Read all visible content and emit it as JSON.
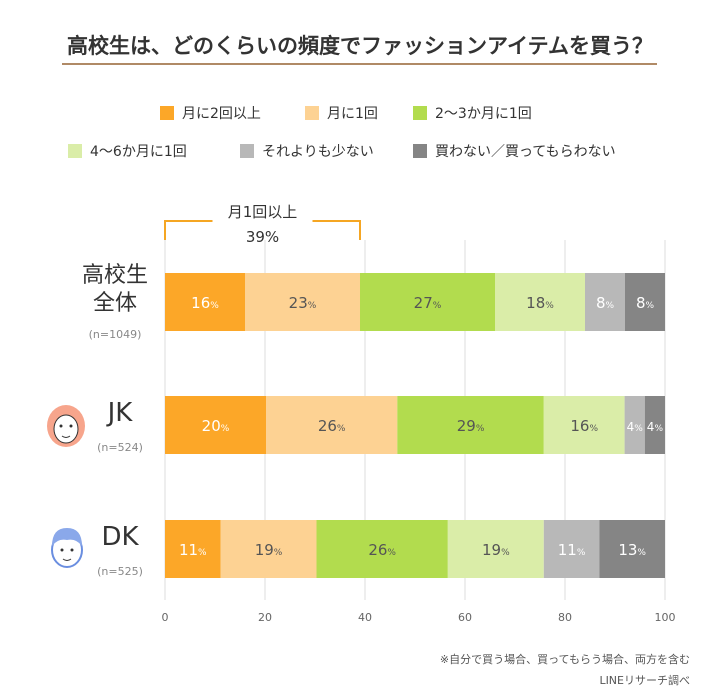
{
  "chart_data": {
    "type": "bar",
    "orientation": "horizontal-stacked",
    "title": "高校生は、どのくらいの頻度でファッションアイテムを買う？",
    "categories": [
      "高校生全体",
      "JK",
      "DK"
    ],
    "category_notes": [
      "(n=1049)",
      "(n=524)",
      "(n=525)"
    ],
    "series": [
      {
        "name": "月に2回以上",
        "color": "#fca728",
        "values": [
          16,
          20,
          11
        ]
      },
      {
        "name": "月に1回",
        "color": "#fdd293",
        "values": [
          23,
          26,
          19
        ]
      },
      {
        "name": "2〜3か月に1回",
        "color": "#b2dc4e",
        "values": [
          27,
          29,
          26
        ]
      },
      {
        "name": "4〜6か月に1回",
        "color": "#daeda8",
        "values": [
          18,
          16,
          19
        ]
      },
      {
        "name": "それよりも少ない",
        "color": "#b8b8b8",
        "values": [
          8,
          4,
          11
        ]
      },
      {
        "name": "買わない／買ってもらわない",
        "color": "#858585",
        "values": [
          8,
          4,
          13
        ]
      }
    ],
    "value_suffix": "%",
    "xlim": [
      0,
      100
    ],
    "xticks": [
      0,
      20,
      40,
      60,
      80,
      100
    ],
    "grid": true,
    "legend_position": "top",
    "annotation": {
      "label": "月1回以上",
      "value": "39%"
    }
  },
  "footnotes": [
    "※自分で買う場合、買ってもらう場合、両方を含む",
    "LINEリサーチ調べ"
  ]
}
